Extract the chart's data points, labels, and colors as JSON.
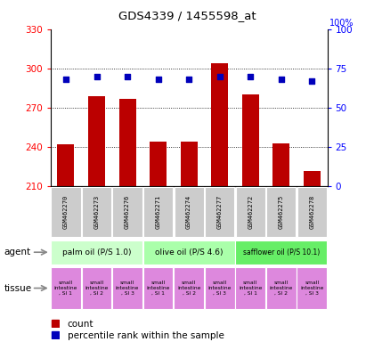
{
  "title": "GDS4339 / 1455598_at",
  "samples": [
    "GSM462270",
    "GSM462273",
    "GSM462276",
    "GSM462271",
    "GSM462274",
    "GSM462277",
    "GSM462272",
    "GSM462275",
    "GSM462278"
  ],
  "counts": [
    242,
    279,
    277,
    244,
    244,
    304,
    280,
    243,
    222
  ],
  "percentiles": [
    68,
    70,
    70,
    68,
    68,
    70,
    70,
    68,
    67
  ],
  "ylim_left": [
    210,
    330
  ],
  "ylim_right": [
    0,
    100
  ],
  "yticks_left": [
    210,
    240,
    270,
    300,
    330
  ],
  "yticks_right": [
    0,
    25,
    50,
    75,
    100
  ],
  "bar_color": "#bb0000",
  "dot_color": "#0000bb",
  "bar_bottom": 210,
  "agent_groups": [
    {
      "label": "palm oil (P/S 1.0)",
      "start": 0,
      "end": 3,
      "color": "#ccffcc"
    },
    {
      "label": "olive oil (P/S 4.6)",
      "start": 3,
      "end": 6,
      "color": "#aaffaa"
    },
    {
      "label": "safflower oil (P/S 10.1)",
      "start": 6,
      "end": 9,
      "color": "#66ee66"
    }
  ],
  "tissue_labels": [
    "small\nintestine\n, SI 1",
    "small\nintestine\n, SI 2",
    "small\nintestine\n, SI 3",
    "small\nintestine\n, SI 1",
    "small\nintestine\n, SI 2",
    "small\nintestine\n, SI 3",
    "small\nintestine\n, SI 1",
    "small\nintestine\n, SI 2",
    "small\nintestine\n, SI 3"
  ],
  "tissue_color": "#dd88dd",
  "sample_bg": "#cccccc",
  "legend_count_color": "#bb0000",
  "legend_pct_color": "#0000bb",
  "fig_width": 4.2,
  "fig_height": 3.84,
  "dpi": 100
}
